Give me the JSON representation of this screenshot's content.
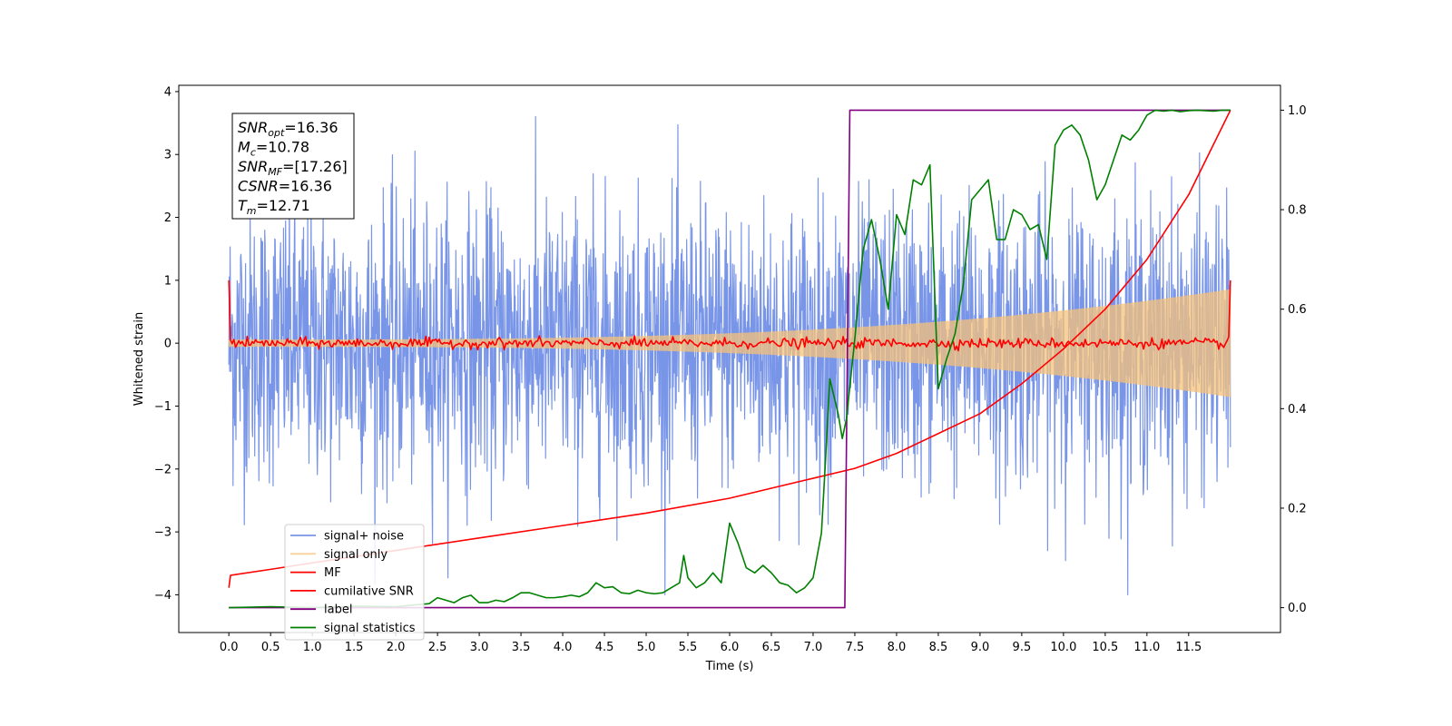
{
  "chart_data": {
    "type": "line",
    "xlabel": "Time (s)",
    "ylabel": "Whitened strain",
    "xlim": [
      -0.6,
      12.6
    ],
    "ylim": [
      -4.6,
      4.1
    ],
    "y2lim": [
      -0.05,
      1.05
    ],
    "grid": false,
    "legend_position": "lower-left",
    "x_ticks": [
      "0.0",
      "0.5",
      "1.0",
      "1.5",
      "2.0",
      "2.5",
      "3.0",
      "3.5",
      "4.0",
      "4.5",
      "5.0",
      "5.5",
      "6.0",
      "6.5",
      "7.0",
      "7.5",
      "8.0",
      "8.5",
      "9.0",
      "9.5",
      "10.0",
      "10.5",
      "11.0",
      "11.5"
    ],
    "y_ticks": [
      "−4",
      "−3",
      "−2",
      "−1",
      "0",
      "1",
      "2",
      "3",
      "4"
    ],
    "y2_ticks": [
      "0.0",
      "0.2",
      "0.4",
      "0.6",
      "0.8",
      "1.0"
    ],
    "annotation": [
      {
        "label": "SNR",
        "sub": "opt",
        "value": "=16.36"
      },
      {
        "label": "M",
        "sub": "c",
        "value": "=10.78"
      },
      {
        "label": "SNR",
        "sub": "MF",
        "value": "=[17.26]"
      },
      {
        "label": "CSNR",
        "sub": "",
        "value": "=16.36"
      },
      {
        "label": "T",
        "sub": "m",
        "value": "=12.71"
      }
    ],
    "series": [
      {
        "name": "signal+ noise",
        "color": "#4c72e0",
        "axis": "left",
        "kind": "noise",
        "t_range": [
          0,
          12
        ],
        "amplitude_sigma": 1.1,
        "peak_abs": 4.0
      },
      {
        "name": "signal only",
        "color": "#f5c27a",
        "axis": "left",
        "kind": "chirp",
        "t_range": [
          0,
          12
        ],
        "start_amplitude": 0.05,
        "end_amplitude": 0.85
      },
      {
        "name": "MF",
        "color": "#ff0000",
        "axis": "left",
        "kind": "noise-small",
        "t_range": [
          0,
          12
        ],
        "amplitude_sigma": 0.04,
        "edges": [
          1.0,
          1.0
        ]
      },
      {
        "name": "cumilative SNR",
        "color": "#ff0000",
        "axis": "right",
        "x": [
          0.0,
          0.02,
          0.5,
          1.0,
          2.0,
          3.0,
          4.0,
          5.0,
          6.0,
          7.0,
          7.5,
          8.0,
          8.5,
          9.0,
          9.5,
          10.0,
          10.5,
          11.0,
          11.5,
          12.0
        ],
        "values": [
          0.04,
          0.065,
          0.077,
          0.09,
          0.115,
          0.14,
          0.165,
          0.19,
          0.22,
          0.26,
          0.28,
          0.31,
          0.35,
          0.39,
          0.45,
          0.52,
          0.6,
          0.7,
          0.83,
          1.0
        ]
      },
      {
        "name": "label",
        "color": "#800080",
        "axis": "right",
        "x": [
          0.0,
          7.38,
          7.44,
          12.0
        ],
        "values": [
          0.0,
          0.0,
          1.0,
          1.0
        ]
      },
      {
        "name": "signal statistics",
        "color": "#008000",
        "axis": "right",
        "x": [
          0.0,
          0.5,
          1.0,
          1.5,
          2.0,
          2.2,
          2.4,
          2.5,
          2.6,
          2.7,
          2.8,
          2.9,
          3.0,
          3.1,
          3.2,
          3.3,
          3.4,
          3.5,
          3.6,
          3.7,
          3.8,
          3.9,
          4.0,
          4.1,
          4.2,
          4.3,
          4.4,
          4.5,
          4.6,
          4.7,
          4.8,
          4.9,
          5.0,
          5.1,
          5.2,
          5.3,
          5.4,
          5.45,
          5.5,
          5.6,
          5.7,
          5.8,
          5.9,
          6.0,
          6.1,
          6.2,
          6.3,
          6.4,
          6.5,
          6.6,
          6.7,
          6.8,
          6.9,
          7.0,
          7.1,
          7.15,
          7.2,
          7.3,
          7.35,
          7.4,
          7.5,
          7.6,
          7.7,
          7.8,
          7.9,
          8.0,
          8.1,
          8.2,
          8.3,
          8.4,
          8.5,
          8.6,
          8.7,
          8.8,
          8.9,
          9.0,
          9.1,
          9.2,
          9.3,
          9.4,
          9.5,
          9.6,
          9.7,
          9.8,
          9.9,
          10.0,
          10.1,
          10.2,
          10.3,
          10.4,
          10.5,
          10.6,
          10.7,
          10.8,
          10.9,
          11.0,
          11.1,
          11.2,
          11.3,
          11.4,
          11.5,
          11.6,
          11.7,
          11.8,
          11.9,
          12.0
        ],
        "values": [
          0.0,
          0.002,
          0.0,
          0.003,
          0.002,
          0.005,
          0.008,
          0.02,
          0.015,
          0.01,
          0.02,
          0.025,
          0.01,
          0.01,
          0.015,
          0.012,
          0.02,
          0.03,
          0.03,
          0.025,
          0.02,
          0.02,
          0.022,
          0.025,
          0.022,
          0.03,
          0.05,
          0.04,
          0.042,
          0.03,
          0.028,
          0.035,
          0.03,
          0.028,
          0.03,
          0.04,
          0.05,
          0.105,
          0.06,
          0.04,
          0.05,
          0.07,
          0.05,
          0.17,
          0.13,
          0.08,
          0.07,
          0.085,
          0.07,
          0.05,
          0.045,
          0.03,
          0.04,
          0.06,
          0.15,
          0.3,
          0.46,
          0.39,
          0.34,
          0.38,
          0.54,
          0.72,
          0.78,
          0.7,
          0.6,
          0.79,
          0.75,
          0.86,
          0.85,
          0.89,
          0.44,
          0.5,
          0.55,
          0.65,
          0.82,
          0.84,
          0.86,
          0.74,
          0.74,
          0.8,
          0.79,
          0.76,
          0.77,
          0.7,
          0.93,
          0.96,
          0.97,
          0.95,
          0.9,
          0.82,
          0.85,
          0.9,
          0.95,
          0.94,
          0.96,
          0.99,
          1.0,
          0.998,
          1.0,
          0.997,
          0.999,
          1.0,
          0.999,
          0.998,
          1.0,
          1.0
        ]
      }
    ]
  }
}
